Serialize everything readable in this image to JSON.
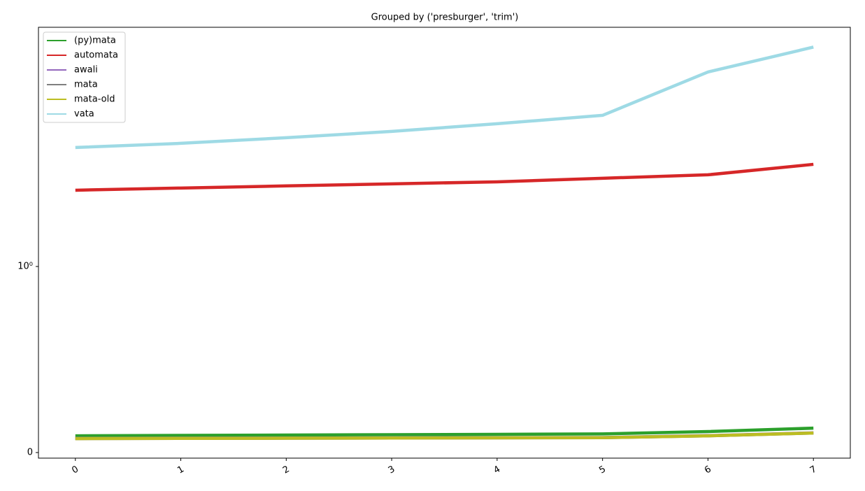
{
  "chart_data": {
    "type": "line",
    "title": "Grouped by ('presburger', 'trim')",
    "x": [
      0,
      1,
      2,
      3,
      4,
      5,
      6,
      7
    ],
    "xlim": [
      -0.35,
      7.35
    ],
    "xticks": [
      0,
      1,
      2,
      3,
      4,
      5,
      6,
      7
    ],
    "yscale": "symlog",
    "linthresh": 1,
    "ylim": [
      -0.03,
      19.3
    ],
    "yticks": [
      0,
      {
        "value": 1,
        "label": "10⁰"
      }
    ],
    "legend": "upper left",
    "series": [
      {
        "name": "(py)mata",
        "color": "#2ca02c",
        "values": [
          0.09,
          0.092,
          0.094,
          0.096,
          0.098,
          0.1,
          0.113,
          0.131
        ]
      },
      {
        "name": "automata",
        "color": "#d62728",
        "values": [
          2.57,
          2.64,
          2.71,
          2.78,
          2.85,
          2.98,
          3.11,
          3.54
        ]
      },
      {
        "name": "awali",
        "color": "#9467bd",
        "values": [
          0.076,
          0.077,
          0.078,
          0.079,
          0.08,
          0.081,
          0.091,
          0.106
        ]
      },
      {
        "name": "mata",
        "color": "#7f7f7f",
        "values": [
          0.075,
          0.076,
          0.077,
          0.078,
          0.079,
          0.08,
          0.09,
          0.105
        ]
      },
      {
        "name": "mata-old",
        "color": "#bcbd22",
        "values": [
          0.075,
          0.076,
          0.077,
          0.078,
          0.079,
          0.08,
          0.09,
          0.105
        ]
      },
      {
        "name": "vata",
        "color": "#9edae5",
        "values": [
          4.36,
          4.59,
          4.92,
          5.32,
          5.85,
          6.49,
          11.1,
          15.1
        ]
      }
    ]
  }
}
